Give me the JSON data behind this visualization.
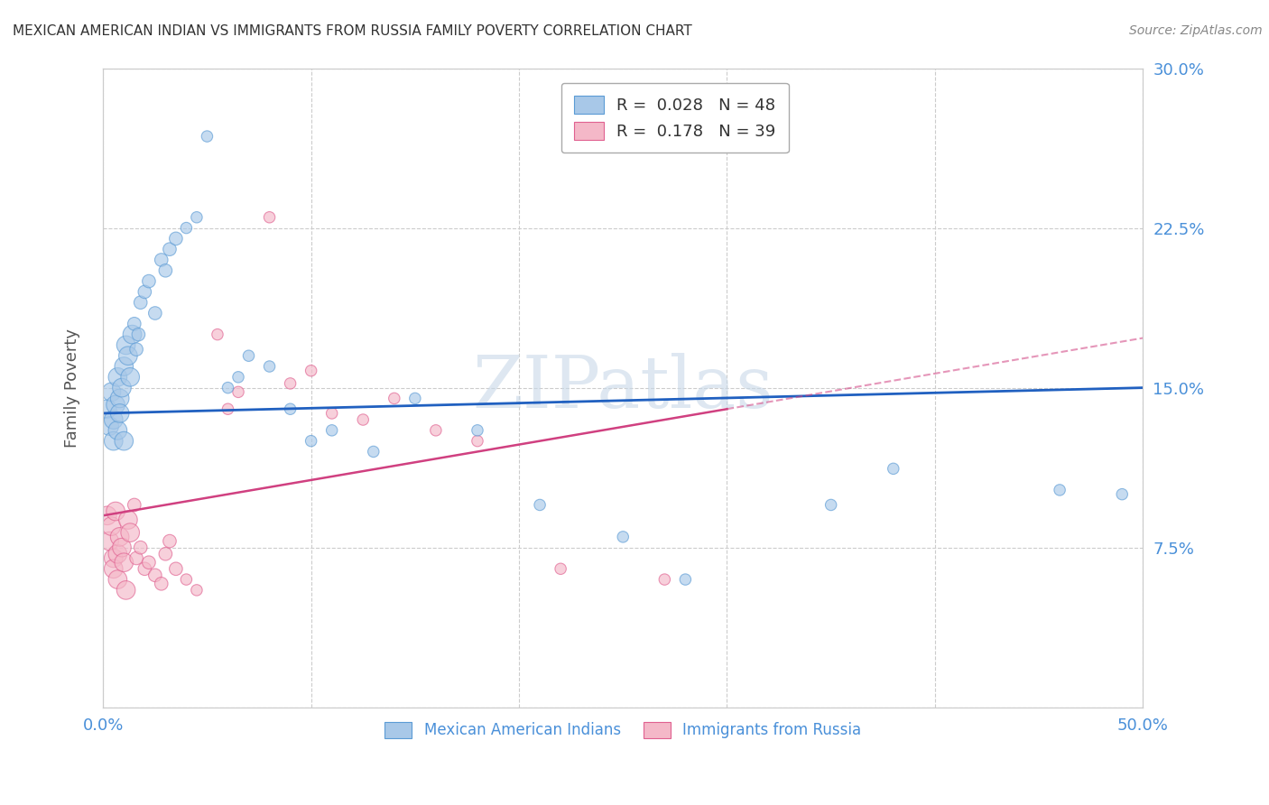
{
  "title": "MEXICAN AMERICAN INDIAN VS IMMIGRANTS FROM RUSSIA FAMILY POVERTY CORRELATION CHART",
  "source": "Source: ZipAtlas.com",
  "ylabel": "Family Poverty",
  "xlim": [
    0.0,
    0.5
  ],
  "ylim": [
    0.0,
    0.3
  ],
  "grid_color": "#cccccc",
  "background_color": "#ffffff",
  "blue_color": "#a8c8e8",
  "blue_edge_color": "#5b9bd5",
  "pink_color": "#f4b8c8",
  "pink_edge_color": "#e06090",
  "blue_line_color": "#2060c0",
  "pink_line_color": "#d04080",
  "pink_dash_color": "#d04080",
  "legend_R_blue": "0.028",
  "legend_N_blue": "48",
  "legend_R_pink": "0.178",
  "legend_N_pink": "39",
  "watermark": "ZIPatlas",
  "watermark_color": "#c8d8e8",
  "blue_line_y0": 0.138,
  "blue_line_y1": 0.15,
  "pink_line_y0": 0.09,
  "pink_line_y1": 0.14,
  "pink_solid_xend": 0.3,
  "blue_x": [
    0.002,
    0.003,
    0.004,
    0.005,
    0.005,
    0.006,
    0.007,
    0.007,
    0.008,
    0.008,
    0.009,
    0.01,
    0.01,
    0.011,
    0.012,
    0.013,
    0.014,
    0.015,
    0.016,
    0.017,
    0.018,
    0.02,
    0.022,
    0.025,
    0.028,
    0.03,
    0.032,
    0.035,
    0.04,
    0.045,
    0.05,
    0.06,
    0.065,
    0.07,
    0.08,
    0.09,
    0.1,
    0.11,
    0.13,
    0.15,
    0.18,
    0.21,
    0.25,
    0.28,
    0.35,
    0.38,
    0.46,
    0.49
  ],
  "blue_y": [
    0.14,
    0.132,
    0.148,
    0.135,
    0.125,
    0.142,
    0.13,
    0.155,
    0.145,
    0.138,
    0.15,
    0.16,
    0.125,
    0.17,
    0.165,
    0.155,
    0.175,
    0.18,
    0.168,
    0.175,
    0.19,
    0.195,
    0.2,
    0.185,
    0.21,
    0.205,
    0.215,
    0.22,
    0.225,
    0.23,
    0.268,
    0.15,
    0.155,
    0.165,
    0.16,
    0.14,
    0.125,
    0.13,
    0.12,
    0.145,
    0.13,
    0.095,
    0.08,
    0.06,
    0.095,
    0.112,
    0.102,
    0.1
  ],
  "pink_x": [
    0.002,
    0.003,
    0.004,
    0.005,
    0.005,
    0.006,
    0.007,
    0.007,
    0.008,
    0.009,
    0.01,
    0.011,
    0.012,
    0.013,
    0.015,
    0.016,
    0.018,
    0.02,
    0.022,
    0.025,
    0.028,
    0.03,
    0.032,
    0.035,
    0.04,
    0.045,
    0.055,
    0.06,
    0.065,
    0.08,
    0.09,
    0.1,
    0.11,
    0.125,
    0.14,
    0.16,
    0.18,
    0.22,
    0.27
  ],
  "pink_y": [
    0.09,
    0.078,
    0.085,
    0.07,
    0.065,
    0.092,
    0.072,
    0.06,
    0.08,
    0.075,
    0.068,
    0.055,
    0.088,
    0.082,
    0.095,
    0.07,
    0.075,
    0.065,
    0.068,
    0.062,
    0.058,
    0.072,
    0.078,
    0.065,
    0.06,
    0.055,
    0.175,
    0.14,
    0.148,
    0.23,
    0.152,
    0.158,
    0.138,
    0.135,
    0.145,
    0.13,
    0.125,
    0.065,
    0.06
  ],
  "blue_sizes_small": 80,
  "blue_sizes_large": 220,
  "pink_sizes_small": 80,
  "pink_sizes_large": 220
}
